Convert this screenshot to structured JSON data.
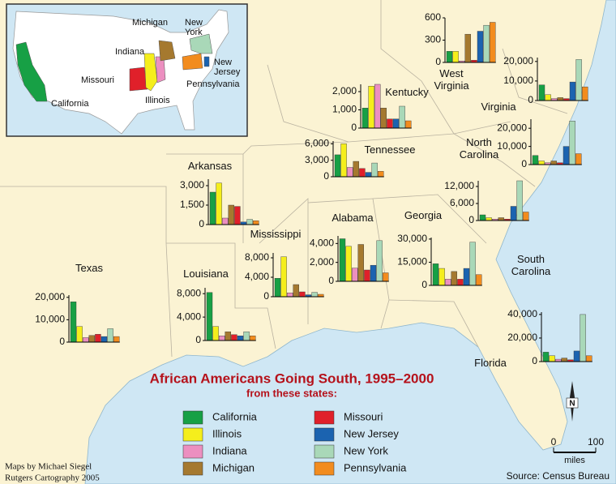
{
  "title": "African Americans Going South, 1995–2000",
  "subtitle": "from these states:",
  "origin_states": [
    {
      "name": "California",
      "color": "#17a045"
    },
    {
      "name": "Illinois",
      "color": "#f5ee1c"
    },
    {
      "name": "Indiana",
      "color": "#ec8fc0"
    },
    {
      "name": "Michigan",
      "color": "#a5792f"
    },
    {
      "name": "Missouri",
      "color": "#e0202a"
    },
    {
      "name": "New Jersey",
      "color": "#1b63b0"
    },
    {
      "name": "New York",
      "color": "#a9d8b8"
    },
    {
      "name": "Pennsylvania",
      "color": "#f28c1e"
    }
  ],
  "charts": [
    {
      "state": "Texas",
      "ylim": [
        0,
        21000
      ],
      "yticks": [
        0,
        {
          "value": 10000,
          "label": "10,000"
        },
        {
          "value": 20000,
          "label": "20,000"
        }
      ],
      "values": [
        18000,
        7000,
        2000,
        3000,
        3500,
        2500,
        6000,
        2500
      ]
    },
    {
      "state": "Arkansas",
      "ylim": [
        0,
        3500
      ],
      "yticks": [
        0,
        {
          "value": 1500,
          "label": "1,500"
        },
        {
          "value": 3000,
          "label": "3,000"
        }
      ],
      "values": [
        2500,
        3200,
        500,
        1500,
        1400,
        200,
        400,
        300
      ]
    },
    {
      "state": "Louisiana",
      "ylim": [
        0,
        9000
      ],
      "yticks": [
        0,
        {
          "value": 4000,
          "label": "4,000"
        },
        {
          "value": 8000,
          "label": "8,000"
        }
      ],
      "values": [
        8200,
        2400,
        800,
        1500,
        1000,
        800,
        1500,
        800
      ]
    },
    {
      "state": "Mississippi",
      "ylim": [
        0,
        9000
      ],
      "yticks": [
        0,
        {
          "value": 4000,
          "label": "4,000"
        },
        {
          "value": 8000,
          "label": "8,000"
        }
      ],
      "values": [
        3800,
        8200,
        800,
        2500,
        1000,
        400,
        900,
        500
      ]
    },
    {
      "state": "Alabama",
      "ylim": [
        0,
        4800
      ],
      "yticks": [
        0,
        {
          "value": 2000,
          "label": "2,000"
        },
        {
          "value": 4000,
          "label": "4,000"
        }
      ],
      "values": [
        4500,
        3700,
        1400,
        3900,
        1200,
        1700,
        4300,
        900
      ]
    },
    {
      "state": "Georgia",
      "ylim": [
        0,
        31000
      ],
      "yticks": [
        0,
        {
          "value": 15000,
          "label": "15,000"
        },
        {
          "value": 30000,
          "label": "30,000"
        }
      ],
      "values": [
        14000,
        11000,
        4000,
        9000,
        4000,
        11000,
        28000,
        7000
      ]
    },
    {
      "state": "Tennessee",
      "ylim": [
        0,
        6500
      ],
      "yticks": [
        0,
        {
          "value": 3000,
          "label": "3,000"
        },
        {
          "value": 6000,
          "label": "6,000"
        }
      ],
      "values": [
        4000,
        6000,
        1700,
        2800,
        1500,
        800,
        2500,
        1000
      ]
    },
    {
      "state": "Kentucky",
      "ylim": [
        0,
        2400
      ],
      "yticks": [
        0,
        {
          "value": 1000,
          "label": "1,000"
        },
        {
          "value": 2000,
          "label": "2,000"
        }
      ],
      "values": [
        1100,
        2300,
        2400,
        1100,
        500,
        500,
        1200,
        400
      ]
    },
    {
      "state": "West Virginia",
      "ylim": [
        0,
        600
      ],
      "yticks": [
        0,
        300,
        600
      ],
      "values": [
        150,
        150,
        20,
        380,
        30,
        420,
        500,
        540
      ]
    },
    {
      "state": "Virginia",
      "ylim": [
        0,
        22000
      ],
      "yticks": [
        0,
        {
          "value": 10000,
          "label": "10,000"
        },
        {
          "value": 20000,
          "label": "20,000"
        }
      ],
      "values": [
        8000,
        3000,
        1000,
        1500,
        1000,
        9500,
        21000,
        7000
      ]
    },
    {
      "state": "North Carolina",
      "ylim": [
        0,
        25000
      ],
      "yticks": [
        0,
        {
          "value": 10000,
          "label": "10,000"
        },
        {
          "value": 20000,
          "label": "20,000"
        }
      ],
      "values": [
        5000,
        2000,
        1000,
        2000,
        1000,
        10000,
        24000,
        6000
      ]
    },
    {
      "state": "South Carolina",
      "ylim": [
        0,
        14000
      ],
      "yticks": [
        0,
        {
          "value": 6000,
          "label": "6,000"
        },
        {
          "value": 12000,
          "label": "12,000"
        }
      ],
      "values": [
        2000,
        1000,
        500,
        1000,
        500,
        5000,
        14000,
        3000
      ]
    },
    {
      "state": "Florida",
      "ylim": [
        0,
        42000
      ],
      "yticks": [
        0,
        {
          "value": 20000,
          "label": "20,000"
        },
        {
          "value": 40000,
          "label": "40,000"
        }
      ],
      "values": [
        8000,
        5000,
        2000,
        3000,
        1500,
        9000,
        40000,
        5000
      ]
    }
  ],
  "credits": [
    "Maps by Michael Siegel",
    "Rutgers Cartography 2005"
  ],
  "source": "Source: Census Bureau",
  "scale": {
    "ticks": [
      0,
      100
    ],
    "unit": "miles"
  },
  "north": "N"
}
